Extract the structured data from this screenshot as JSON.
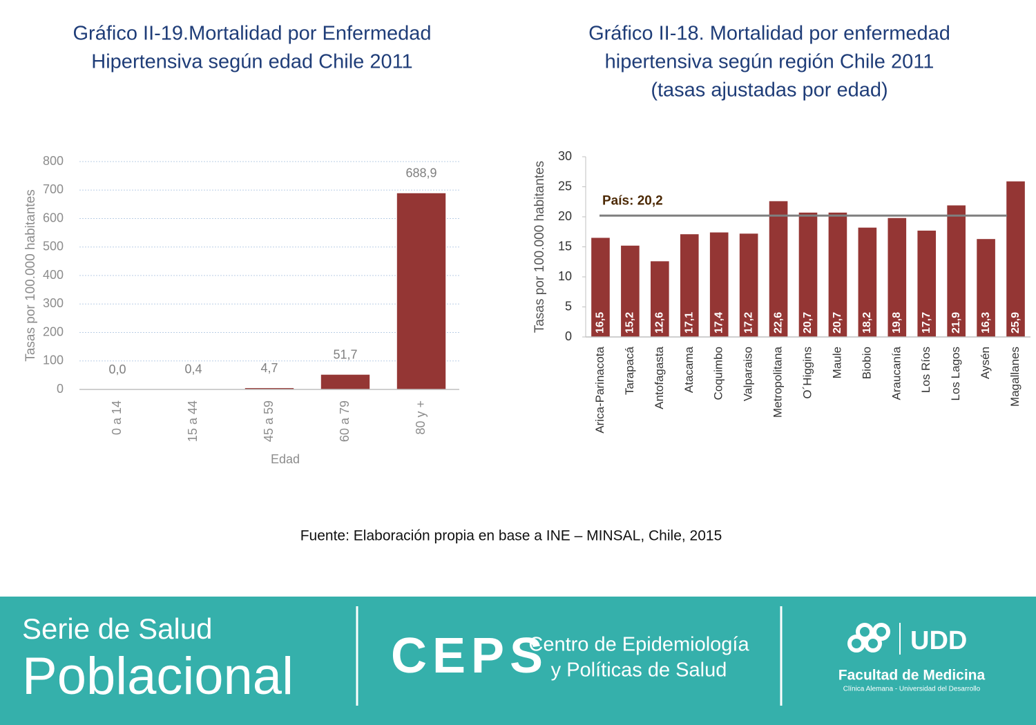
{
  "chart_data": [
    {
      "type": "bar",
      "title": [
        "Gráfico II-19.Mortalidad por Enfermedad",
        "Hipertensiva según edad Chile 2011"
      ],
      "categories": [
        "0 a 14",
        "15 a 44",
        "45 a 59",
        "60 a 79",
        "80 y +"
      ],
      "values": [
        0,
        0.4,
        4.7,
        51.7,
        688.9
      ],
      "value_labels": [
        "0,0",
        "0,4",
        "4,7",
        "51,7",
        "688,9"
      ],
      "color": "#943634",
      "ylabel": "Tasas por 100.000 habitantes",
      "xlabel": "Edad",
      "ylim": [
        0,
        800
      ],
      "yticks": [
        0,
        100,
        200,
        300,
        400,
        500,
        600,
        700,
        800
      ],
      "grid": true
    },
    {
      "type": "bar",
      "title": [
        "Gráfico II-18. Mortalidad por enfermedad",
        "hipertensiva según región Chile 2011"
      ],
      "subtitle": "(tasas ajustadas por edad)",
      "categories": [
        "Arica-Parinacota",
        "Tarapacá",
        "Antofagasta",
        "Atacama",
        "Coquimbo",
        "Valparaiso",
        "Metropolitana",
        "O´Higgins",
        "Maule",
        "Biobio",
        "Araucanía",
        "Los Ríos",
        "Los Lagos",
        "Aysén",
        "Magallanes"
      ],
      "values": [
        16.5,
        15.2,
        12.6,
        17.1,
        17.4,
        17.2,
        22.6,
        20.7,
        20.7,
        18.2,
        19.8,
        17.7,
        21.9,
        16.3,
        25.9
      ],
      "value_labels": [
        "16,5",
        "15,2",
        "12,6",
        "17,1",
        "17,4",
        "17,2",
        "22,6",
        "20,7",
        "20,7",
        "18,2",
        "19,8",
        "17,7",
        "21,9",
        "16,3",
        "25,9"
      ],
      "color": "#943634",
      "ylabel": "Tasas por 100.000 habitantes",
      "ylim": [
        0,
        30
      ],
      "yticks": [
        0,
        5,
        10,
        15,
        20,
        25,
        30
      ],
      "grid": false,
      "reference": {
        "value": 20.2,
        "label": "País: 20,2",
        "color": "#7f7f7f"
      }
    }
  ],
  "source": "Fuente: Elaboración propia en base a INE – MINSAL, Chile, 2015",
  "banner": {
    "series_line1": "Serie de Salud",
    "series_line2": "Poblacional",
    "ceps": "CEPS",
    "ceps_line1": "Centro de Epidemiología",
    "ceps_line2": "y Políticas de Salud",
    "udd": "UDD",
    "faculty": "Facultad de Medicina",
    "faculty_sub": "Clínica Alemana - Universidad del Desarrollo"
  }
}
